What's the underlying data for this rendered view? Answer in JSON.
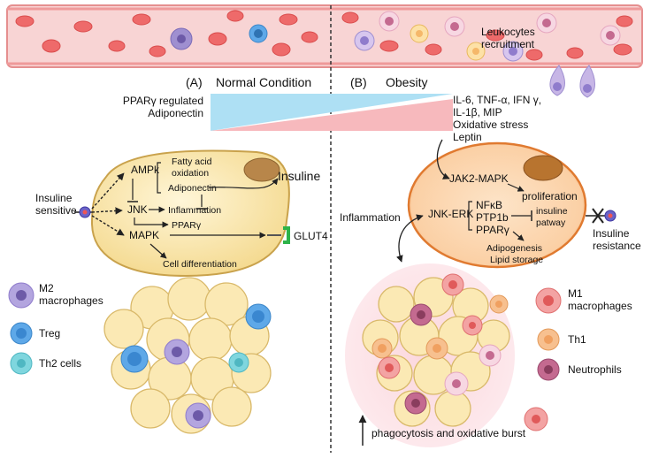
{
  "panels": {
    "a_letter": "(A)",
    "a_title": "Normal Condition",
    "b_letter": "(B)",
    "b_title": "Obesity"
  },
  "vessel": {
    "leukocytes_line1": "Leukocytes",
    "leukocytes_line2": "recruitment"
  },
  "gradient": {
    "left_line1": "PPARγ regulated",
    "left_line2": "Adiponectin",
    "right_lines": [
      "IL-6, TNF-α, IFN γ,",
      "IL-1β, MIP",
      "Oxidative stress",
      "Leptin"
    ]
  },
  "normal_cell": {
    "ampk": "AMPk",
    "fatty_acid_1": "Fatty acid",
    "fatty_acid_2": "oxidation",
    "adiponectin": "Adiponectin",
    "jnk": "JNK",
    "inflammation": "Inflammation",
    "ppar": "PPARγ",
    "mapk": "MAPK",
    "cell_diff": "Cell differentiation",
    "insuline": "Insuline",
    "glut4": "GLUT4",
    "insuline_sensitive_1": "Insuline",
    "insuline_sensitive_2": "sensitive"
  },
  "obese_cell": {
    "jak2": "JAK2-MAPK",
    "proliferation": "proliferation",
    "inflammation": "Inflammation",
    "jnk_erk": "JNK-ERK",
    "nfkb": "NFκB",
    "ptp1b": "PTP1b",
    "ppar": "PPARγ",
    "insuline_pathway_1": "insuline",
    "insuline_pathway_2": "patway",
    "adipogenesis": "Adipogenesis",
    "lipid_storage": "Lipid storage",
    "resistance_1": "Insuline",
    "resistance_2": "resistance"
  },
  "legend_left": [
    {
      "label_1": "M2",
      "label_2": "macrophages"
    },
    {
      "label_1": "Treg",
      "label_2": ""
    },
    {
      "label_1": "Th2 cells",
      "label_2": ""
    }
  ],
  "legend_right": [
    {
      "label_1": "M1",
      "label_2": "macrophages"
    },
    {
      "label_1": "Th1",
      "label_2": ""
    },
    {
      "label_1": "Neutrophils",
      "label_2": ""
    }
  ],
  "bottom_note": "phagocytosis and oxidative burst",
  "colors": {
    "vessel": "#f6c9c9",
    "rbc": "#ee6a6a",
    "adipocyte": "#fbe9b4",
    "adipocyte_edge": "#d9b96a",
    "obese_adipocyte": "#f5a35f",
    "blue_triangle": "#aee0f4",
    "pink_triangle": "#f7b9bd",
    "m2": "#9f8fd0",
    "treg": "#5ea8e8",
    "th2": "#7fd6de",
    "m1": "#f08a8a",
    "th1": "#f7c08f",
    "neutrophil": "#c46a90"
  }
}
